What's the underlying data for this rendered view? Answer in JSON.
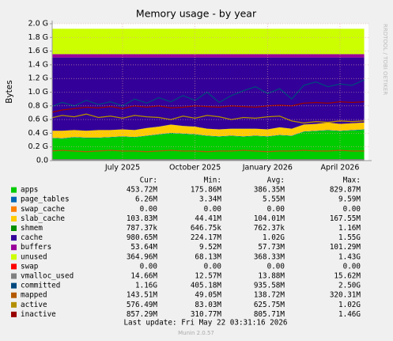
{
  "chart_data": {
    "type": "munin-area",
    "title": "Memory usage - by year",
    "y_label": "Bytes",
    "side_note": "RRDTOOL / TOBI OETIKER",
    "categories": [
      null,
      null,
      null,
      null,
      null,
      null,
      "July 2025",
      null,
      null,
      null,
      null,
      null,
      "October 2025",
      null,
      null,
      null,
      null,
      null,
      "January 2026",
      null,
      null,
      null,
      null,
      null,
      "April 2026",
      null,
      null
    ],
    "ylim": [
      0,
      2.0
    ],
    "yticks": [
      {
        "value": 0,
        "label": "0.0"
      },
      {
        "value": 0.2,
        "label": "0.2 G"
      },
      {
        "value": 0.4,
        "label": "0.4 G"
      },
      {
        "value": 0.6,
        "label": "0.6 G"
      },
      {
        "value": 0.8,
        "label": "0.8 G"
      },
      {
        "value": 1.0,
        "label": "1.0 G"
      },
      {
        "value": 1.2,
        "label": "1.2 G"
      },
      {
        "value": 1.4,
        "label": "1.4 G"
      },
      {
        "value": 1.6,
        "label": "1.6 G"
      },
      {
        "value": 1.8,
        "label": "1.8 G"
      },
      {
        "value": 2.0,
        "label": "2.0 G"
      }
    ],
    "grid": true,
    "stats_labels": [
      "Cur:",
      "Min:",
      "Avg:",
      "Max:"
    ],
    "series": [
      {
        "name": "apps",
        "color": "#00cc00",
        "kind": "area",
        "stats": [
          "453.72M",
          "175.86M",
          "386.35M",
          "829.87M"
        ],
        "values": [
          0.33,
          0.32,
          0.34,
          0.33,
          0.33,
          0.34,
          0.35,
          0.34,
          0.36,
          0.38,
          0.4,
          0.39,
          0.38,
          0.36,
          0.35,
          0.36,
          0.35,
          0.36,
          0.35,
          0.37,
          0.36,
          0.42,
          0.43,
          0.44,
          0.43,
          0.44,
          0.45
        ]
      },
      {
        "name": "page_tables",
        "color": "#0066b3",
        "kind": "area",
        "stats": [
          "6.26M",
          "3.34M",
          "5.55M",
          "9.59M"
        ],
        "values": [
          0.006,
          0.006,
          0.006,
          0.006,
          0.006,
          0.006,
          0.006,
          0.006,
          0.006,
          0.006,
          0.006,
          0.006,
          0.006,
          0.006,
          0.006,
          0.006,
          0.006,
          0.006,
          0.006,
          0.006,
          0.006,
          0.006,
          0.006,
          0.006,
          0.006,
          0.006,
          0.006
        ]
      },
      {
        "name": "swap_cache",
        "color": "#ff8000",
        "kind": "area",
        "stats": [
          "0.00",
          "0.00",
          "0.00",
          "0.00"
        ],
        "values": [
          0,
          0,
          0,
          0,
          0,
          0,
          0,
          0,
          0,
          0,
          0,
          0,
          0,
          0,
          0,
          0,
          0,
          0,
          0,
          0,
          0,
          0,
          0,
          0,
          0,
          0,
          0
        ]
      },
      {
        "name": "slab_cache",
        "color": "#ffcc00",
        "kind": "area",
        "stats": [
          "103.83M",
          "44.41M",
          "104.01M",
          "167.55M"
        ],
        "values": [
          0.1,
          0.11,
          0.1,
          0.1,
          0.11,
          0.1,
          0.1,
          0.1,
          0.11,
          0.11,
          0.12,
          0.11,
          0.11,
          0.1,
          0.1,
          0.1,
          0.11,
          0.1,
          0.1,
          0.11,
          0.1,
          0.1,
          0.1,
          0.11,
          0.1,
          0.1,
          0.1
        ]
      },
      {
        "name": "shmem",
        "color": "#008f00",
        "kind": "area",
        "stats": [
          "787.37k",
          "646.75k",
          "762.37k",
          "1.16M"
        ],
        "values": [
          0.0008,
          0.0008,
          0.0008,
          0.0008,
          0.0008,
          0.0008,
          0.0008,
          0.0008,
          0.0008,
          0.0008,
          0.0008,
          0.0008,
          0.0008,
          0.0008,
          0.0008,
          0.0008,
          0.0008,
          0.0008,
          0.0008,
          0.0008,
          0.0008,
          0.0008,
          0.0008,
          0.0008,
          0.0008,
          0.0008,
          0.0008
        ]
      },
      {
        "name": "cache",
        "color": "#330099",
        "kind": "area",
        "stats": [
          "980.65M",
          "224.17M",
          "1.02G",
          "1.55G"
        ],
        "values": [
          1.07,
          1.07,
          1.06,
          1.07,
          1.06,
          1.06,
          1.05,
          1.06,
          1.03,
          1.01,
          0.98,
          1.0,
          1.01,
          1.04,
          1.05,
          1.04,
          1.04,
          1.04,
          1.05,
          1.02,
          1.04,
          0.98,
          0.97,
          0.95,
          0.97,
          0.96,
          0.95
        ]
      },
      {
        "name": "buffers",
        "color": "#990099",
        "kind": "area",
        "stats": [
          "53.64M",
          "9.52M",
          "57.73M",
          "101.29M"
        ],
        "values": [
          0.05,
          0.05,
          0.05,
          0.05,
          0.05,
          0.05,
          0.05,
          0.05,
          0.05,
          0.05,
          0.05,
          0.05,
          0.05,
          0.05,
          0.05,
          0.05,
          0.05,
          0.05,
          0.05,
          0.05,
          0.05,
          0.05,
          0.05,
          0.05,
          0.05,
          0.05,
          0.05
        ]
      },
      {
        "name": "unused",
        "color": "#ccff00",
        "kind": "area",
        "stats": [
          "364.96M",
          "68.13M",
          "368.33M",
          "1.43G"
        ],
        "values": [
          0.37,
          0.37,
          0.37,
          0.37,
          0.37,
          0.37,
          0.37,
          0.37,
          0.37,
          0.37,
          0.37,
          0.37,
          0.37,
          0.37,
          0.37,
          0.37,
          0.37,
          0.37,
          0.37,
          0.37,
          0.37,
          0.37,
          0.37,
          0.37,
          0.37,
          0.37,
          0.37
        ]
      },
      {
        "name": "swap",
        "color": "#ff0000",
        "kind": "line",
        "stats": [
          "0.00",
          "0.00",
          "0.00",
          "0.00"
        ],
        "values": [
          0,
          0,
          0,
          0,
          0,
          0,
          0,
          0,
          0,
          0,
          0,
          0,
          0,
          0,
          0,
          0,
          0,
          0,
          0,
          0,
          0,
          0,
          0,
          0,
          0,
          0,
          0
        ]
      },
      {
        "name": "vmalloc_used",
        "color": "#808080",
        "kind": "line",
        "stats": [
          "14.66M",
          "12.57M",
          "13.88M",
          "15.62M"
        ],
        "values": [
          0.014,
          0.014,
          0.014,
          0.014,
          0.014,
          0.014,
          0.014,
          0.014,
          0.014,
          0.014,
          0.014,
          0.014,
          0.014,
          0.014,
          0.014,
          0.014,
          0.014,
          0.014,
          0.014,
          0.014,
          0.014,
          0.014,
          0.014,
          0.014,
          0.014,
          0.014,
          0.014
        ]
      },
      {
        "name": "committed",
        "color": "#00487d",
        "kind": "line",
        "stats": [
          "1.16G",
          "405.18M",
          "935.58M",
          "2.50G"
        ],
        "values": [
          0.78,
          0.85,
          0.8,
          0.88,
          0.82,
          0.86,
          0.8,
          0.9,
          0.84,
          0.92,
          0.86,
          0.95,
          0.88,
          1.0,
          0.85,
          0.95,
          1.02,
          1.08,
          0.98,
          1.05,
          0.9,
          1.1,
          1.15,
          1.08,
          1.12,
          1.1,
          1.18
        ]
      },
      {
        "name": "mapped",
        "color": "#b35a00",
        "kind": "line",
        "stats": [
          "143.51M",
          "49.05M",
          "138.72M",
          "320.31M"
        ],
        "values": [
          0.14,
          0.15,
          0.14,
          0.13,
          0.14,
          0.15,
          0.14,
          0.14,
          0.13,
          0.14,
          0.15,
          0.14,
          0.14,
          0.13,
          0.14,
          0.14,
          0.15,
          0.14,
          0.13,
          0.14,
          0.14,
          0.15,
          0.14,
          0.14,
          0.15,
          0.14,
          0.14
        ]
      },
      {
        "name": "active",
        "color": "#b38f00",
        "kind": "line",
        "stats": [
          "576.49M",
          "83.03M",
          "625.75M",
          "1.02G"
        ],
        "values": [
          0.62,
          0.66,
          0.64,
          0.68,
          0.63,
          0.65,
          0.62,
          0.66,
          0.64,
          0.63,
          0.6,
          0.65,
          0.62,
          0.66,
          0.64,
          0.6,
          0.63,
          0.62,
          0.64,
          0.65,
          0.58,
          0.55,
          0.57,
          0.56,
          0.58,
          0.57,
          0.58
        ]
      },
      {
        "name": "inactive",
        "color": "#990000",
        "kind": "line",
        "stats": [
          "857.29M",
          "310.77M",
          "805.71M",
          "1.46G"
        ],
        "values": [
          0.7,
          0.74,
          0.76,
          0.78,
          0.77,
          0.79,
          0.76,
          0.8,
          0.78,
          0.8,
          0.77,
          0.78,
          0.8,
          0.79,
          0.78,
          0.8,
          0.79,
          0.78,
          0.8,
          0.81,
          0.8,
          0.84,
          0.85,
          0.84,
          0.86,
          0.85,
          0.86
        ]
      }
    ],
    "last_update": "Last update: Fri May 22 03:31:16 2026",
    "footer": "Munin 2.0.57"
  }
}
